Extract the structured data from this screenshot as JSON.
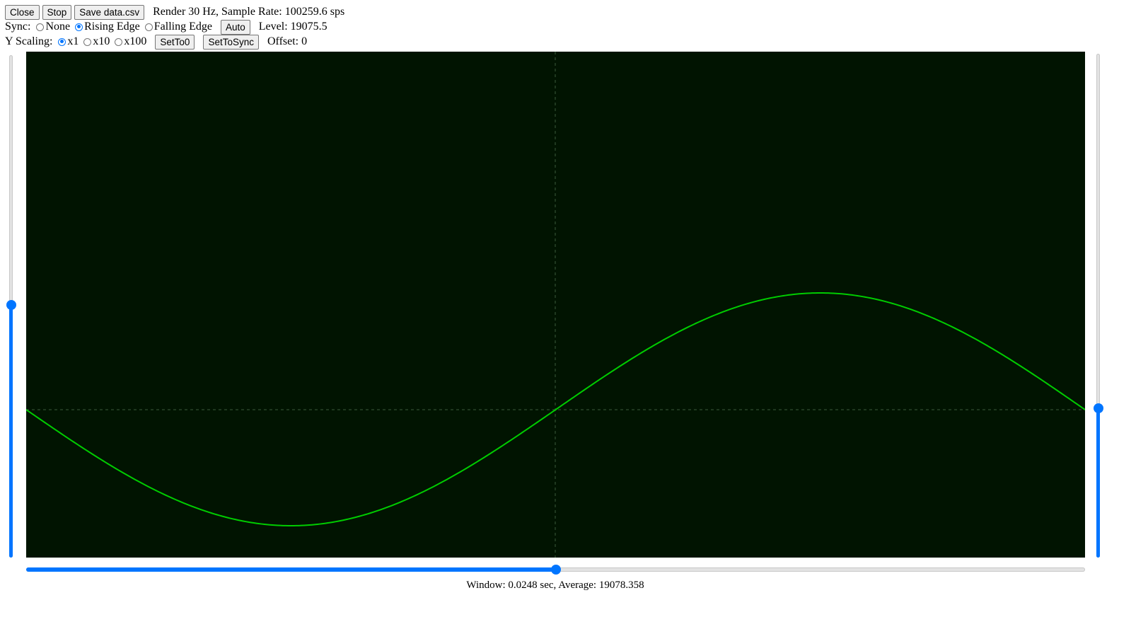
{
  "toolbar": {
    "close_label": "Close",
    "stop_label": "Stop",
    "save_label": "Save data.csv",
    "render_info": "Render 30 Hz, Sample Rate: 100259.6 sps"
  },
  "sync": {
    "label": "Sync:",
    "options": [
      "None",
      "Rising Edge",
      "Falling Edge"
    ],
    "selected": "Rising Edge",
    "auto_label": "Auto",
    "level_text": "Level: 19075.5"
  },
  "yscale": {
    "label": "Y Scaling:",
    "options": [
      "x1",
      "x10",
      "x100"
    ],
    "selected": "x1",
    "set_to_zero_label": "SetTo0",
    "set_to_sync_label": "SetToSync",
    "offset_text": "Offset: 0"
  },
  "status": {
    "text": "Window: 0.0248 sec, Average: 19078.358"
  },
  "sliders": {
    "left_level_fraction": 0.5,
    "right_offset_fraction": 0.3,
    "bottom_position_fraction": 0.5
  },
  "colors": {
    "scope_background": "#011401",
    "trace": "#00cc00",
    "grid": "#3a5a3a",
    "accent": "#0075ff"
  },
  "chart_data": {
    "type": "line",
    "description_series": "sine",
    "samples": 400,
    "phase_start_deg": 180,
    "phase_end_deg": 540,
    "y_positive_amplitude": 0.46,
    "y_negative_amplitude": 0.46,
    "grid": "dashed center crosshair",
    "title": "",
    "xlabel": "",
    "ylabel": ""
  }
}
